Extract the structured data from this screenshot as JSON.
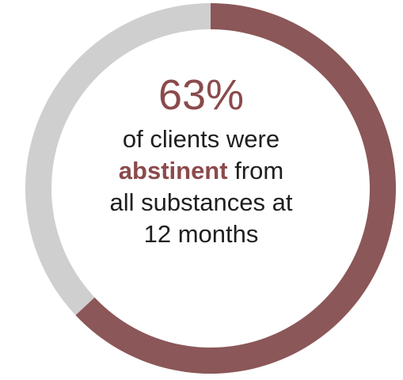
{
  "chart_data": {
    "type": "pie",
    "values": [
      63,
      37
    ],
    "colors": [
      "#8b5758",
      "#cfcfcf"
    ],
    "center_label": {
      "value": "63%",
      "line1": "of clients were",
      "highlight": "abstinent",
      "line2_rest": " from",
      "line3": "all substances at",
      "line4": "12 months"
    }
  },
  "theme": {
    "accent": "#8b4a4b",
    "remaining": "#cfcfcf",
    "background": "#ffffff"
  }
}
